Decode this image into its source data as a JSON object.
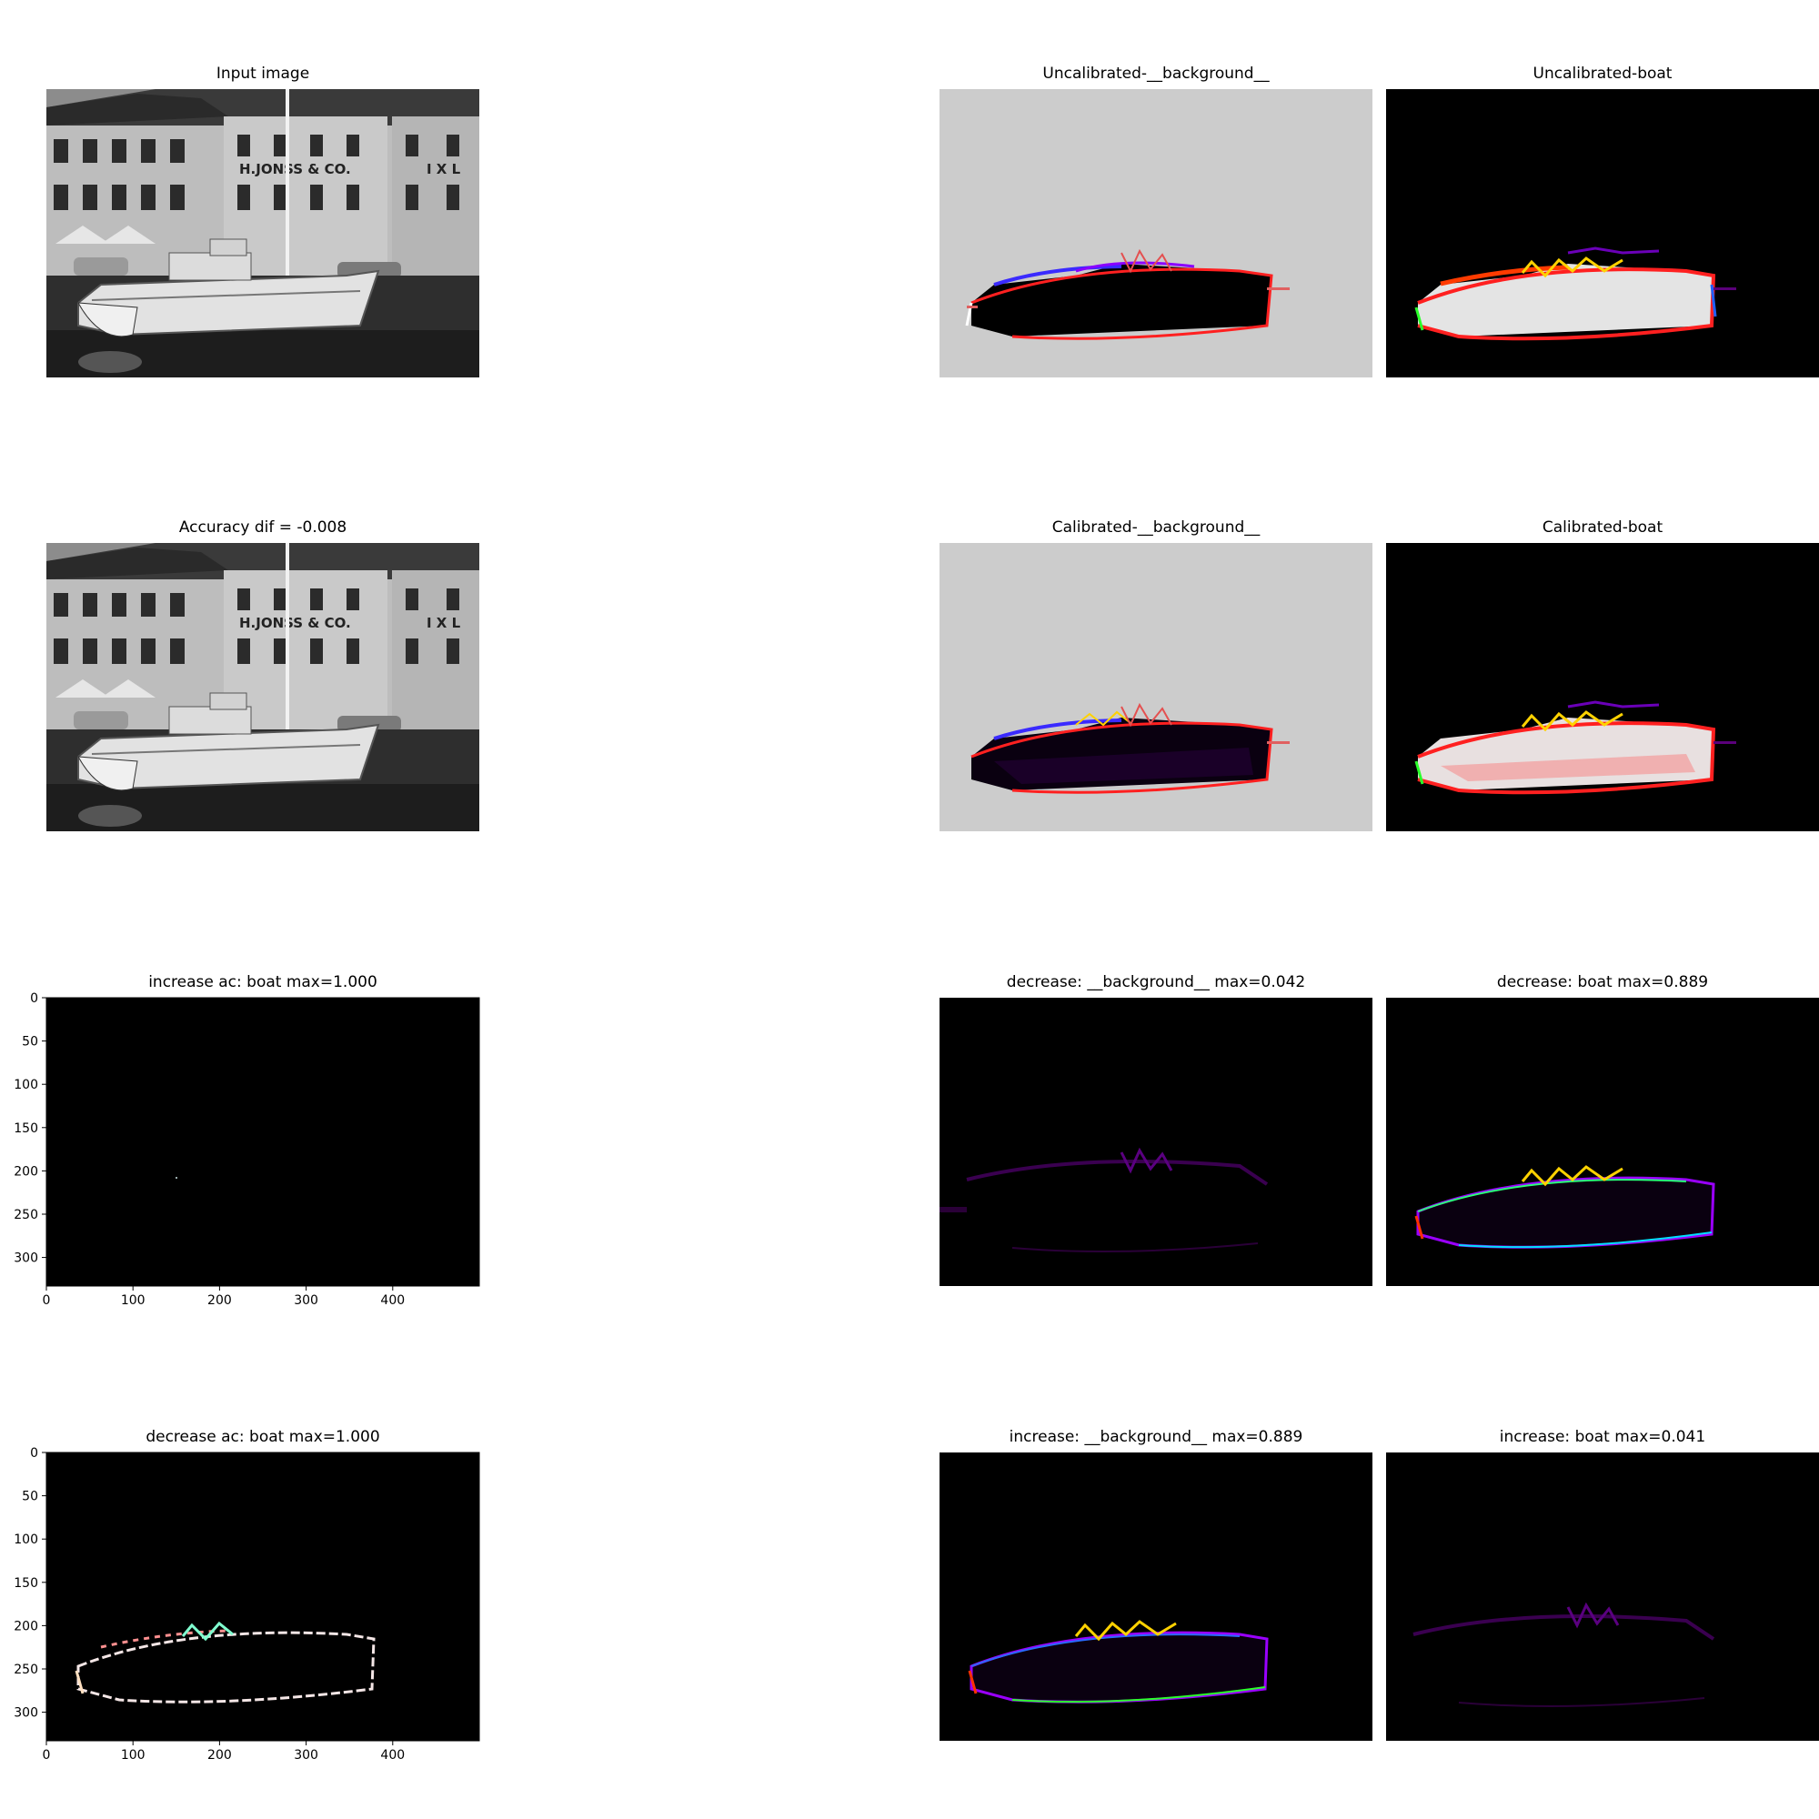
{
  "panels": {
    "input": {
      "title": "Input image",
      "kind": "photo"
    },
    "uncal_bg": {
      "title": "Uncalibrated-__background__",
      "kind": "heat-bg"
    },
    "uncal_boat": {
      "title": "Uncalibrated-boat",
      "kind": "heat-boat"
    },
    "acc_dif": {
      "title": "Accuracy dif = -0.008",
      "kind": "photo"
    },
    "cal_bg": {
      "title": "Calibrated-__background__",
      "kind": "heat-bg"
    },
    "cal_boat": {
      "title": "Calibrated-boat",
      "kind": "heat-boat"
    },
    "inc_ac": {
      "title": "increase ac: boat max=1.000",
      "kind": "black-axes"
    },
    "dec_bg": {
      "title": "decrease: __background__ max=0.042",
      "kind": "faint"
    },
    "dec_boat": {
      "title": "decrease: boat max=0.889",
      "kind": "outline"
    },
    "dec_ac": {
      "title": "decrease ac: boat max=1.000",
      "kind": "black-axes-outline"
    },
    "inc_bg": {
      "title": "increase: __background__ max=0.889",
      "kind": "outline"
    },
    "inc_boat": {
      "title": "increase: boat max=0.041",
      "kind": "faint"
    }
  },
  "photo_sign_text": "H.JONSS & CO.",
  "photo_sign_text2": "I X L",
  "chart_data": {
    "type": "heatmap",
    "description_source": "figure grid of image panels",
    "x_ticks": [
      0,
      100,
      200,
      300,
      400
    ],
    "y_ticks": [
      0,
      50,
      100,
      150,
      200,
      250,
      300
    ],
    "xlim": [
      0,
      500
    ],
    "ylim": [
      333,
      0
    ],
    "colors": {
      "bg_gray": "#cccccc",
      "black": "#000000",
      "boat_white": "#e8e8e8"
    }
  }
}
